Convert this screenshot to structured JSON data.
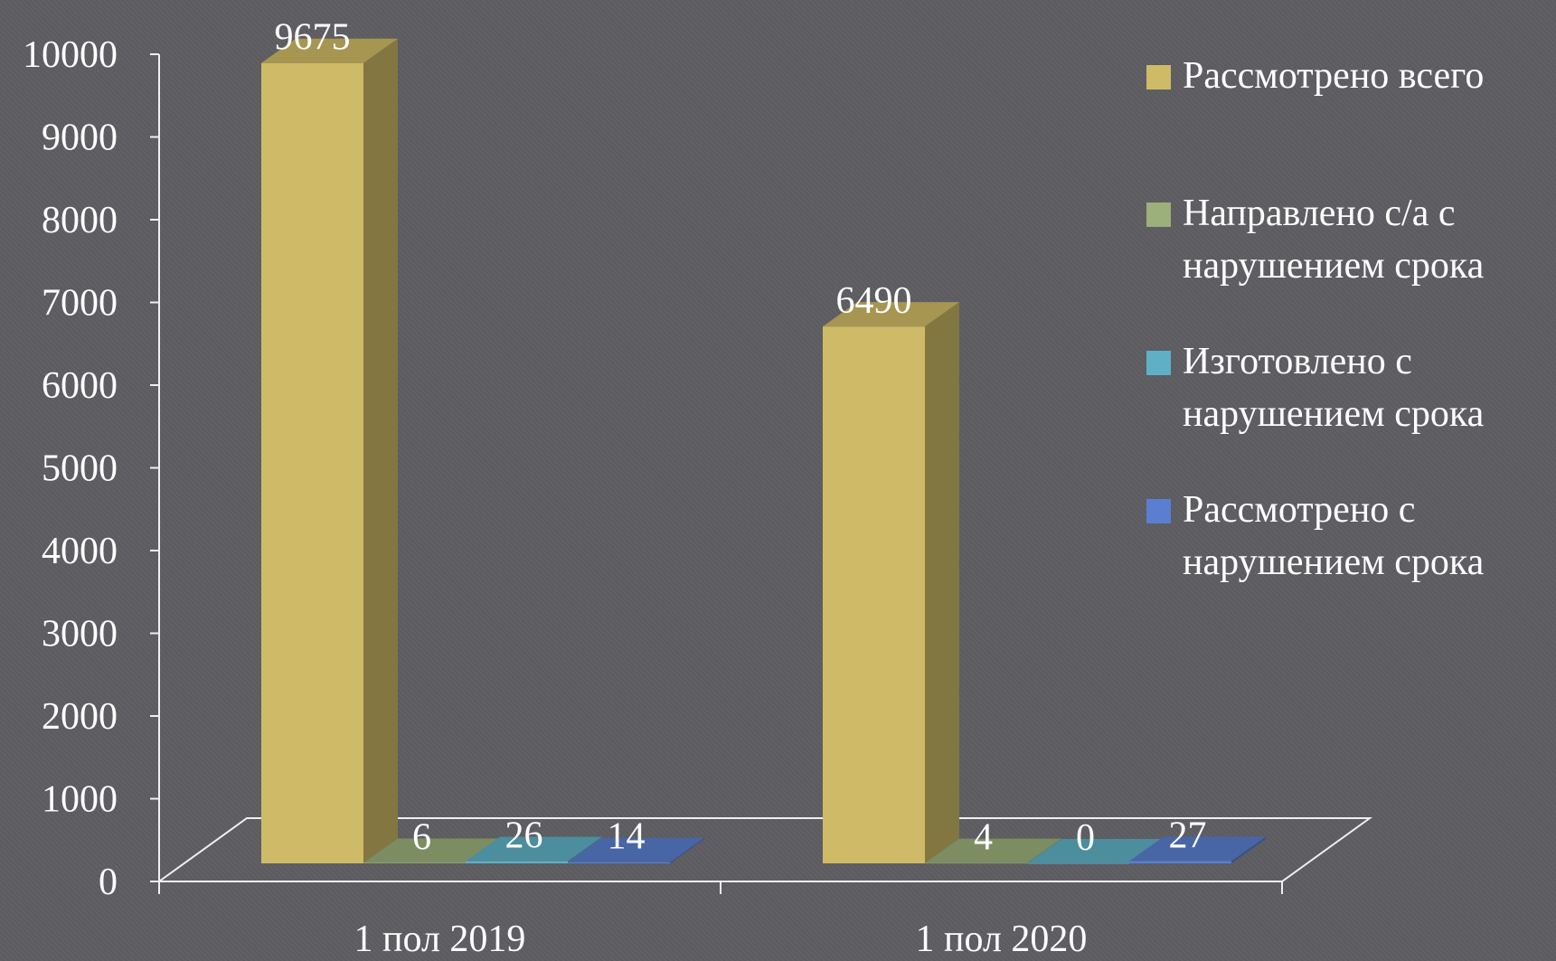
{
  "chart_data": {
    "type": "bar3d",
    "categories": [
      "1 пол 2019",
      "1 пол 2020"
    ],
    "series": [
      {
        "name": "Рассмотрено всего",
        "color": "#cfbb67",
        "values": [
          9675,
          6490
        ]
      },
      {
        "name": "Направлено с/а с нарушением срока",
        "color": "#9bb07a",
        "values": [
          6,
          4
        ]
      },
      {
        "name": "Изготовлено с нарушением срока",
        "color": "#5fb0c6",
        "values": [
          26,
          0
        ]
      },
      {
        "name": "Рассмотрено с нарушением срока",
        "color": "#5a7fd0",
        "values": [
          14,
          27
        ]
      }
    ],
    "ylim": [
      0,
      10000
    ],
    "yticks": [
      0,
      1000,
      2000,
      3000,
      4000,
      5000,
      6000,
      7000,
      8000,
      9000,
      10000
    ],
    "legend": "right"
  }
}
